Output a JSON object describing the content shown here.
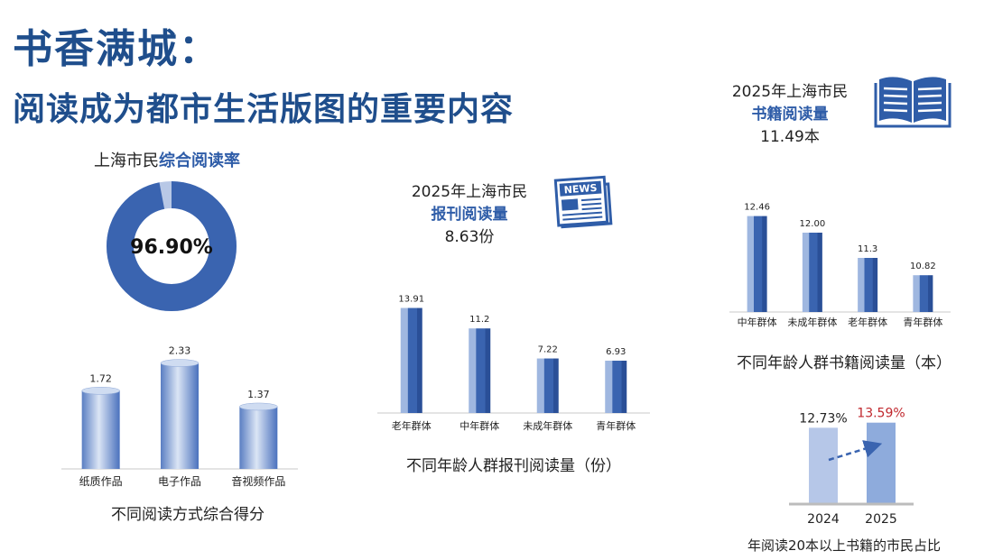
{
  "header": {
    "title": "书香满城：",
    "subtitle": "阅读成为都市生活版图的重要内容"
  },
  "colors": {
    "title": "#1f4e8c",
    "primary": "#3a64b0",
    "light": "#9fb7e0",
    "accent_red": "#c0272d"
  },
  "donut": {
    "label_plain": "上海市民",
    "label_bold": "综合阅读率",
    "value_text": "96.90%",
    "value": 96.9
  },
  "newspaper": {
    "line1": "2025年上海市民",
    "line2": "报刊阅读量",
    "line3": "8.63份",
    "icon": "newspaper-icon"
  },
  "book": {
    "line1": "2025年上海市民",
    "line2": "书籍阅读量",
    "line3": "11.49本",
    "icon": "open-book-icon"
  },
  "chart_data": [
    {
      "id": "reading-method",
      "type": "bar",
      "title": "不同阅读方式综合得分",
      "categories": [
        "纸质作品",
        "电子作品",
        "音视频作品"
      ],
      "values": [
        1.72,
        2.33,
        1.37
      ],
      "labels": [
        "1.72",
        "2.33",
        "1.37"
      ],
      "ylim": [
        0,
        2.5
      ]
    },
    {
      "id": "newspaper-by-age",
      "type": "bar",
      "title": "不同年龄人群报刊阅读量（份）",
      "categories": [
        "老年群体",
        "中年群体",
        "未成年群体",
        "青年群体"
      ],
      "values": [
        13.91,
        11.2,
        7.22,
        6.93
      ],
      "labels": [
        "13.91",
        "11.2",
        "7.22",
        "6.93"
      ],
      "ylim": [
        0,
        16
      ]
    },
    {
      "id": "books-by-age",
      "type": "bar",
      "title": "不同年龄人群书籍阅读量（本）",
      "categories": [
        "中年群体",
        "未成年群体",
        "老年群体",
        "青年群体"
      ],
      "values": [
        12.46,
        12.0,
        11.3,
        10.82
      ],
      "labels": [
        "12.46",
        "12.00",
        "11.3",
        "10.82"
      ],
      "ylim": [
        9.8,
        12.9
      ]
    },
    {
      "id": "20-books-share",
      "type": "bar",
      "title": "年阅读20本以上书籍的市民占比",
      "categories": [
        "2024",
        "2025"
      ],
      "values": [
        12.73,
        13.59
      ],
      "labels": [
        "12.73%",
        "13.59%"
      ],
      "ylim": [
        0,
        14
      ]
    }
  ]
}
